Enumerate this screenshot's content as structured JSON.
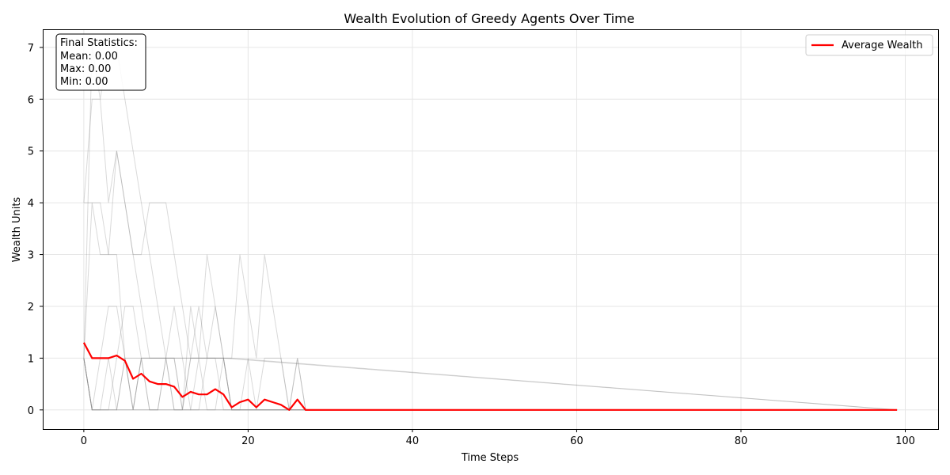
{
  "chart_data": {
    "type": "line",
    "title": "Wealth Evolution of Greedy Agents Over Time",
    "xlabel": "Time Steps",
    "ylabel": "Wealth Units",
    "xlim": [
      -5,
      104
    ],
    "ylim": [
      -0.37,
      7.35
    ],
    "xticks": [
      0,
      20,
      40,
      60,
      80,
      100
    ],
    "yticks": [
      0,
      1,
      2,
      3,
      4,
      5,
      6,
      7
    ],
    "grid": true,
    "legend": {
      "position": "top-right",
      "entries": [
        "Average Wealth"
      ]
    },
    "stats_box": {
      "position": "top-left",
      "lines": [
        "Final Statistics:",
        "Mean: 0.00",
        "Max: 0.00",
        "Min: 0.00"
      ]
    },
    "colors": {
      "average": "#ff0000",
      "agent": "#808080"
    },
    "average_series": {
      "name": "Average Wealth",
      "x": [
        0,
        1,
        2,
        3,
        4,
        5,
        6,
        7,
        8,
        9,
        10,
        11,
        12,
        13,
        14,
        15,
        16,
        17,
        18,
        19,
        20,
        21,
        22,
        23,
        24,
        25,
        26,
        27,
        99
      ],
      "y": [
        1.3,
        1.0,
        1.0,
        1.0,
        1.05,
        0.95,
        0.6,
        0.7,
        0.55,
        0.5,
        0.5,
        0.45,
        0.25,
        0.35,
        0.3,
        0.3,
        0.4,
        0.3,
        0.05,
        0.15,
        0.2,
        0.05,
        0.2,
        0.15,
        0.1,
        0.0,
        0.2,
        0.0,
        0.0
      ]
    },
    "agent_series": [
      {
        "x": [
          0,
          1,
          2,
          3,
          4,
          5,
          6,
          7,
          12,
          13,
          14,
          15,
          16,
          17,
          99
        ],
        "y": [
          4,
          4,
          4,
          3,
          3,
          1,
          1,
          1,
          1,
          1,
          1,
          1,
          1,
          1,
          0
        ]
      },
      {
        "x": [
          0,
          1,
          2,
          3,
          4,
          5,
          6,
          7,
          8,
          9,
          10,
          11,
          12,
          13,
          14,
          15,
          16,
          17,
          18,
          99
        ],
        "y": [
          4,
          6,
          6,
          4,
          5,
          4,
          3,
          3,
          4,
          4,
          4,
          3,
          2,
          1,
          2,
          1,
          1,
          1,
          0,
          0
        ]
      },
      {
        "x": [
          0,
          1,
          2,
          3,
          4,
          5,
          6,
          7,
          8,
          9,
          10,
          11,
          12,
          13,
          14,
          15,
          16,
          17,
          18,
          99
        ],
        "y": [
          1,
          4,
          3,
          3,
          5,
          4,
          3,
          2,
          1,
          1,
          1,
          1,
          1,
          1,
          1,
          3,
          2,
          1,
          1,
          0
        ]
      },
      {
        "x": [
          0,
          1,
          2,
          3,
          4,
          5,
          6,
          7,
          8,
          9,
          10,
          11,
          12,
          13,
          14,
          15,
          16,
          17,
          18,
          19,
          20,
          21,
          22,
          23,
          24,
          25,
          99
        ],
        "y": [
          1,
          7,
          6,
          7,
          7,
          6,
          5,
          4,
          3,
          2,
          1,
          0,
          0,
          0,
          1,
          0,
          0,
          1,
          1,
          3,
          2,
          1,
          3,
          2,
          1,
          0,
          0
        ]
      },
      {
        "x": [
          0,
          1,
          2,
          3,
          4,
          5,
          6,
          7,
          8,
          9,
          10,
          11,
          12,
          13,
          14,
          15,
          16,
          17,
          18,
          99
        ],
        "y": [
          1,
          0,
          1,
          2,
          2,
          1,
          0,
          1,
          0,
          0,
          1,
          2,
          1,
          0,
          0,
          1,
          2,
          1,
          0,
          0
        ]
      },
      {
        "x": [
          0,
          1,
          2,
          3,
          4,
          5,
          6,
          7,
          8,
          9,
          10,
          11,
          12,
          13,
          14,
          15,
          16,
          17,
          18,
          99
        ],
        "y": [
          1,
          0,
          0,
          0,
          1,
          2,
          2,
          1,
          1,
          1,
          1,
          0,
          0,
          2,
          1,
          1,
          1,
          0,
          0,
          0
        ]
      },
      {
        "x": [
          0,
          1,
          2,
          3,
          4,
          5,
          6,
          7,
          8,
          9,
          10,
          11,
          12,
          13,
          14,
          15,
          16,
          17,
          18,
          19,
          20,
          21,
          22,
          23,
          24,
          25,
          26,
          27,
          99
        ],
        "y": [
          1,
          0,
          0,
          0,
          0,
          1,
          0,
          1,
          1,
          1,
          1,
          1,
          0,
          1,
          1,
          1,
          1,
          1,
          0,
          0,
          1,
          0,
          1,
          1,
          1,
          0,
          1,
          0,
          0
        ]
      },
      {
        "x": [
          0,
          1,
          2,
          3,
          4,
          5,
          6,
          7,
          8,
          9,
          10,
          11,
          12,
          13,
          14,
          15,
          16,
          17,
          18,
          99
        ],
        "y": [
          1,
          0,
          0,
          1,
          0,
          0,
          0,
          0,
          0,
          0,
          0,
          0,
          0,
          0,
          0,
          0,
          0,
          0,
          0,
          0
        ]
      },
      {
        "x": [
          0,
          1,
          2,
          3,
          4,
          5,
          6,
          7,
          8,
          9,
          10,
          11,
          12,
          13,
          14,
          15,
          16,
          17,
          18,
          19,
          20,
          21,
          22,
          23,
          24,
          25,
          26,
          27,
          99
        ],
        "y": [
          1,
          0,
          0,
          0,
          0,
          0,
          0,
          0,
          0,
          0,
          0,
          0,
          0,
          0,
          0,
          0,
          0,
          0,
          0,
          0,
          0,
          0,
          0,
          0,
          0,
          0,
          1,
          0,
          0
        ]
      },
      {
        "x": [
          0,
          1,
          2,
          3,
          4,
          5,
          6,
          7,
          8,
          9,
          10,
          11,
          12,
          13,
          14,
          15,
          16,
          17,
          18,
          99
        ],
        "y": [
          1,
          0,
          0,
          0,
          0,
          1,
          0,
          1,
          0,
          0,
          1,
          1,
          0,
          1,
          1,
          1,
          1,
          1,
          0,
          0
        ]
      }
    ]
  }
}
